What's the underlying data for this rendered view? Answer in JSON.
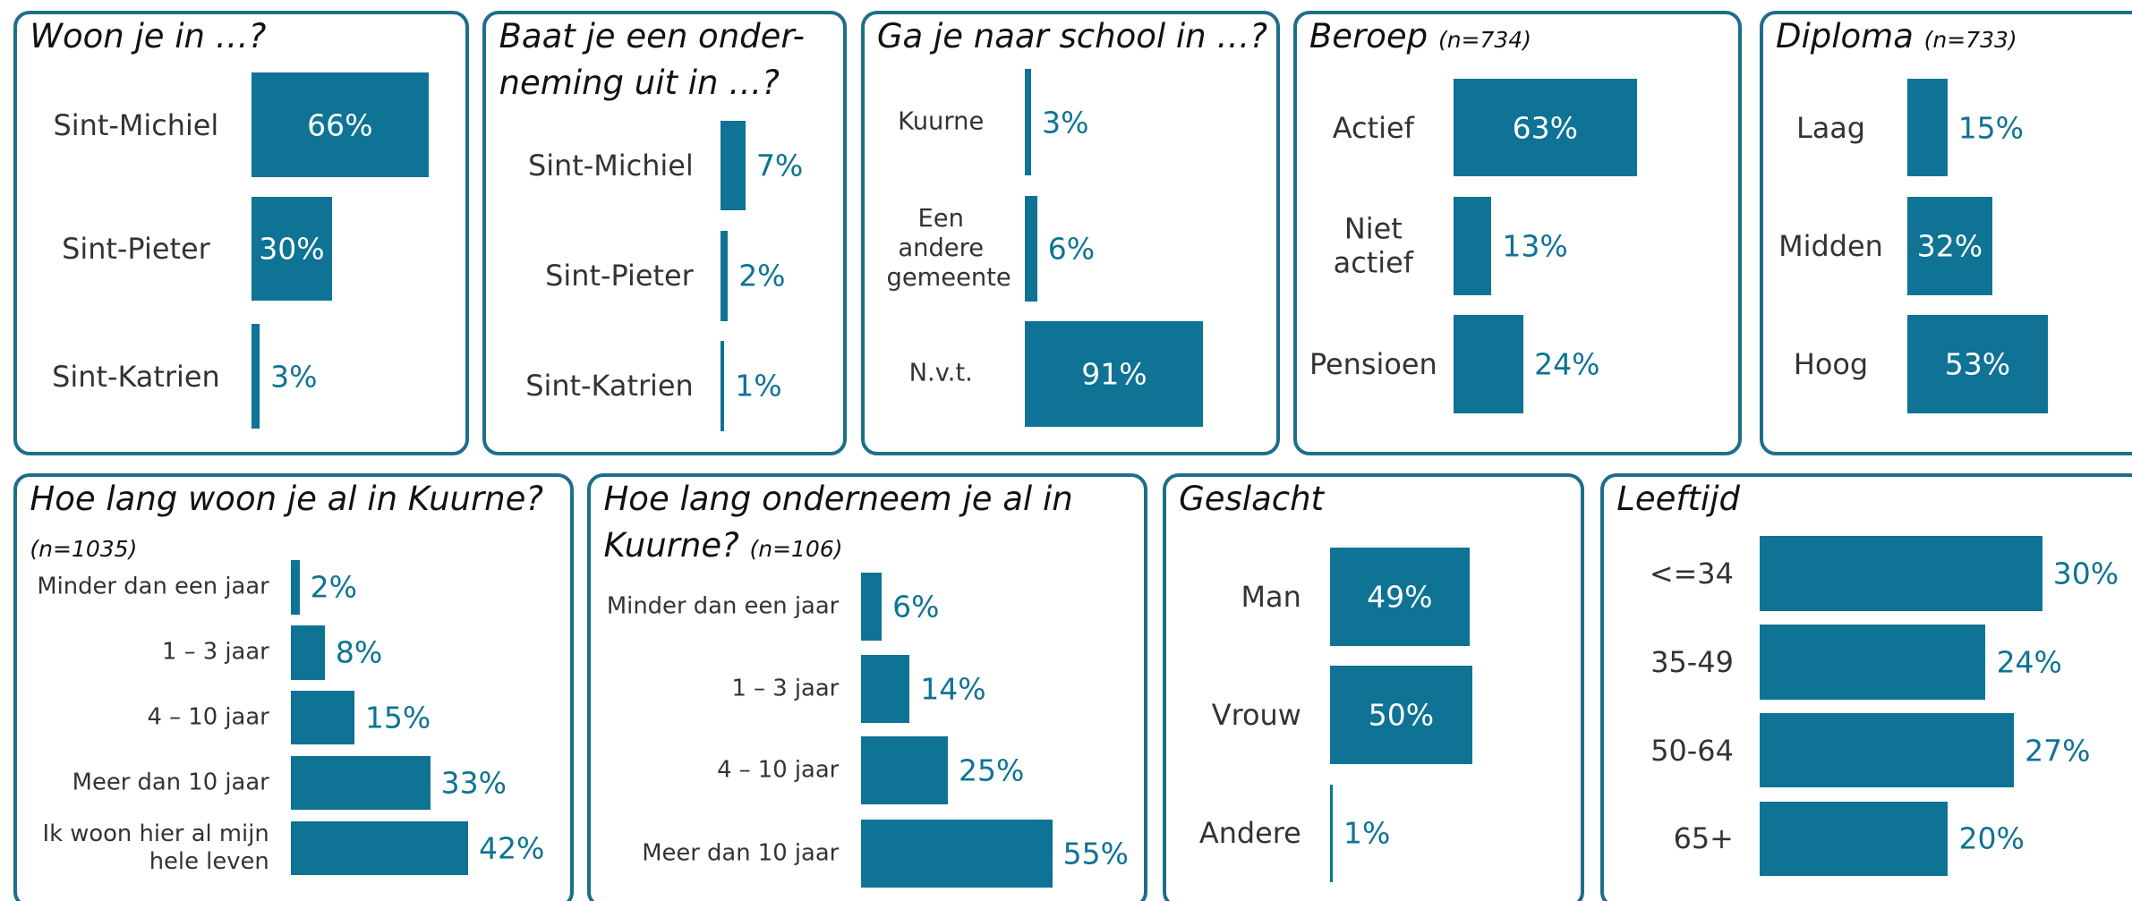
{
  "chart_data": [
    {
      "type": "bar",
      "title": "Woon je in …?",
      "categories": [
        "Sint-Michiel",
        "Sint-Pieter",
        "Sint-Katrien"
      ],
      "values": [
        66,
        30,
        3
      ],
      "value_labels": [
        "66%",
        "30%",
        "3%"
      ],
      "color": "#0e7394"
    },
    {
      "type": "bar",
      "title": "Baat je een onder-neming uit in …?",
      "categories": [
        "Sint-Michiel",
        "Sint-Pieter",
        "Sint-Katrien"
      ],
      "values": [
        7,
        2,
        1
      ],
      "value_labels": [
        "7%",
        "2%",
        "1%"
      ],
      "color": "#0e7394"
    },
    {
      "type": "bar",
      "title": "Ga je naar school in …?",
      "categories": [
        "Kuurne",
        "Een andere gemeente",
        "N.v.t."
      ],
      "values": [
        3,
        6,
        91
      ],
      "value_labels": [
        "3%",
        "6%",
        "91%"
      ],
      "color": "#0e7394"
    },
    {
      "type": "bar",
      "title": "Beroep",
      "subtitle": "(n=734)",
      "categories": [
        "Actief",
        "Niet actief",
        "Pensioen"
      ],
      "values": [
        63,
        13,
        24
      ],
      "value_labels": [
        "63%",
        "13%",
        "24%"
      ],
      "color": "#0e7394"
    },
    {
      "type": "bar",
      "title": "Diploma",
      "subtitle": "(n=733)",
      "categories": [
        "Laag",
        "Midden",
        "Hoog"
      ],
      "values": [
        15,
        32,
        53
      ],
      "value_labels": [
        "15%",
        "32%",
        "53%"
      ],
      "color": "#0e7394"
    },
    {
      "type": "bar",
      "title": "Hoe lang woon je al in Kuurne?",
      "subtitle": "(n=1035)",
      "categories": [
        "Minder dan een jaar",
        "1 – 3 jaar",
        "4 – 10 jaar",
        "Meer dan 10 jaar",
        "Ik woon hier al mijn hele leven"
      ],
      "values": [
        2,
        8,
        15,
        33,
        42
      ],
      "value_labels": [
        "2%",
        "8%",
        "15%",
        "33%",
        "42%"
      ],
      "color": "#0e7394"
    },
    {
      "type": "bar",
      "title": "Hoe lang onderneem je al in Kuurne?",
      "subtitle": "(n=106)",
      "categories": [
        "Minder dan een jaar",
        "1 – 3 jaar",
        "4 – 10 jaar",
        "Meer dan 10 jaar"
      ],
      "values": [
        6,
        14,
        25,
        55
      ],
      "value_labels": [
        "6%",
        "14%",
        "25%",
        "55%"
      ],
      "color": "#0e7394"
    },
    {
      "type": "bar",
      "title": "Geslacht",
      "categories": [
        "Man",
        "Vrouw",
        "Andere"
      ],
      "values": [
        49,
        50,
        1
      ],
      "value_labels": [
        "49%",
        "50%",
        "1%"
      ],
      "color": "#0e7394"
    },
    {
      "type": "bar",
      "title": "Leeftijd",
      "categories": [
        "<=34",
        "35-49",
        "50-64",
        "65+"
      ],
      "values": [
        30,
        24,
        27,
        20
      ],
      "value_labels": [
        "30%",
        "24%",
        "27%",
        "20%"
      ],
      "color": "#0e7394"
    }
  ]
}
